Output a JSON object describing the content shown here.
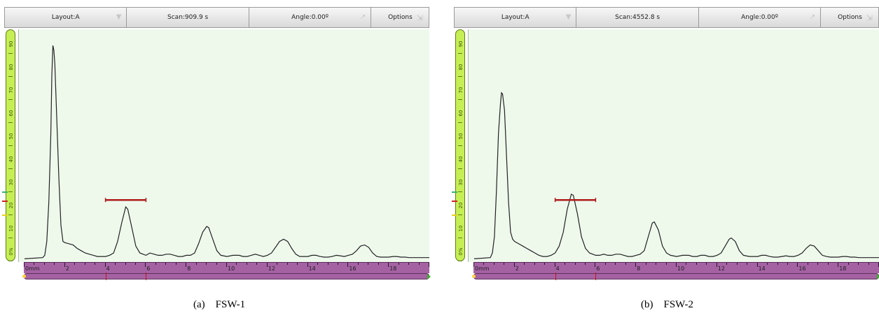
{
  "panels": [
    {
      "layout_label": "Layout:A",
      "scan_label": "Scan:909.9 s",
      "angle_label": "Angle:0.00º",
      "options_label": "Options",
      "y_ticks": [
        "0%",
        "10",
        "20",
        "30",
        "40",
        "50",
        "60",
        "70",
        "80",
        "90"
      ],
      "x_ticks": [
        "0mm",
        "2",
        "4",
        "6",
        "8",
        "10",
        "12",
        "14",
        "16",
        "18"
      ],
      "gate": {
        "start_mm": 4.0,
        "end_mm": 6.0,
        "level_pct": 26
      },
      "caption_tag": "(a)",
      "caption_name": "FSW-1",
      "signal_pts": [
        [
          0.0,
          0.5
        ],
        [
          0.9,
          1
        ],
        [
          1.0,
          2
        ],
        [
          1.1,
          8
        ],
        [
          1.2,
          25
        ],
        [
          1.3,
          55
        ],
        [
          1.35,
          80
        ],
        [
          1.4,
          93
        ],
        [
          1.45,
          91
        ],
        [
          1.5,
          85
        ],
        [
          1.6,
          60
        ],
        [
          1.7,
          35
        ],
        [
          1.8,
          15
        ],
        [
          1.9,
          8
        ],
        [
          2.0,
          7.5
        ],
        [
          2.2,
          7
        ],
        [
          2.4,
          6.5
        ],
        [
          2.6,
          5
        ],
        [
          2.8,
          4
        ],
        [
          3.0,
          3
        ],
        [
          3.2,
          2.5
        ],
        [
          3.4,
          2
        ],
        [
          3.6,
          1.5
        ],
        [
          3.8,
          1.5
        ],
        [
          4.0,
          1.5
        ],
        [
          4.2,
          2
        ],
        [
          4.4,
          3
        ],
        [
          4.6,
          8
        ],
        [
          4.8,
          16
        ],
        [
          5.0,
          23
        ],
        [
          5.1,
          22
        ],
        [
          5.3,
          14
        ],
        [
          5.5,
          6
        ],
        [
          5.7,
          3
        ],
        [
          6.0,
          2
        ],
        [
          6.2,
          3
        ],
        [
          6.4,
          2.5
        ],
        [
          6.6,
          2
        ],
        [
          6.8,
          2
        ],
        [
          7.0,
          2.5
        ],
        [
          7.2,
          2.5
        ],
        [
          7.4,
          2
        ],
        [
          7.6,
          1.5
        ],
        [
          7.8,
          1.5
        ],
        [
          8.0,
          2
        ],
        [
          8.2,
          2
        ],
        [
          8.4,
          3
        ],
        [
          8.6,
          7
        ],
        [
          8.8,
          12
        ],
        [
          9.0,
          14.5
        ],
        [
          9.1,
          14
        ],
        [
          9.3,
          9
        ],
        [
          9.5,
          4
        ],
        [
          9.7,
          2
        ],
        [
          10.0,
          1.5
        ],
        [
          10.3,
          2
        ],
        [
          10.6,
          2
        ],
        [
          10.8,
          1.5
        ],
        [
          11.0,
          1.5
        ],
        [
          11.2,
          2
        ],
        [
          11.4,
          2.5
        ],
        [
          11.6,
          2
        ],
        [
          11.8,
          1.5
        ],
        [
          12.0,
          2
        ],
        [
          12.2,
          3
        ],
        [
          12.4,
          5.5
        ],
        [
          12.6,
          8
        ],
        [
          12.8,
          9
        ],
        [
          13.0,
          8
        ],
        [
          13.2,
          5
        ],
        [
          13.4,
          2.5
        ],
        [
          13.6,
          1.5
        ],
        [
          13.8,
          1.5
        ],
        [
          14.0,
          1.5
        ],
        [
          14.2,
          2
        ],
        [
          14.4,
          2
        ],
        [
          14.6,
          1.5
        ],
        [
          14.8,
          1.2
        ],
        [
          15.0,
          1.2
        ],
        [
          15.2,
          1.5
        ],
        [
          15.4,
          2
        ],
        [
          15.6,
          1.8
        ],
        [
          15.8,
          1.5
        ],
        [
          16.0,
          2
        ],
        [
          16.2,
          2.5
        ],
        [
          16.4,
          4
        ],
        [
          16.6,
          6
        ],
        [
          16.8,
          6.5
        ],
        [
          17.0,
          5.5
        ],
        [
          17.2,
          3
        ],
        [
          17.4,
          1.5
        ],
        [
          17.6,
          1.2
        ],
        [
          17.8,
          1.2
        ],
        [
          18.0,
          1.2
        ],
        [
          18.2,
          1.5
        ],
        [
          18.4,
          1.5
        ],
        [
          18.6,
          1.2
        ],
        [
          18.8,
          1.2
        ],
        [
          19.0,
          1
        ],
        [
          19.3,
          1
        ],
        [
          19.6,
          1
        ],
        [
          20.0,
          1
        ]
      ]
    },
    {
      "layout_label": "Layout:A",
      "scan_label": "Scan:4552.8 s",
      "angle_label": "Angle:0.00º",
      "options_label": "Options",
      "y_ticks": [
        "0%",
        "10",
        "20",
        "30",
        "40",
        "50",
        "60",
        "70",
        "80",
        "90"
      ],
      "x_ticks": [
        "0mm",
        "2",
        "4",
        "6",
        "8",
        "10",
        "12",
        "14",
        "16",
        "18"
      ],
      "gate": {
        "start_mm": 4.0,
        "end_mm": 6.0,
        "level_pct": 26
      },
      "caption_tag": "(b)",
      "caption_name": "FSW-2",
      "signal_pts": [
        [
          0.0,
          0.5
        ],
        [
          0.8,
          1
        ],
        [
          0.9,
          3
        ],
        [
          1.0,
          10
        ],
        [
          1.1,
          30
        ],
        [
          1.2,
          55
        ],
        [
          1.3,
          68
        ],
        [
          1.35,
          72.5
        ],
        [
          1.4,
          72
        ],
        [
          1.5,
          65
        ],
        [
          1.6,
          45
        ],
        [
          1.7,
          25
        ],
        [
          1.8,
          12
        ],
        [
          1.9,
          9
        ],
        [
          2.0,
          8
        ],
        [
          2.2,
          7
        ],
        [
          2.4,
          6
        ],
        [
          2.6,
          5
        ],
        [
          2.8,
          4
        ],
        [
          3.0,
          3
        ],
        [
          3.2,
          2
        ],
        [
          3.4,
          1.5
        ],
        [
          3.6,
          1.5
        ],
        [
          3.8,
          2
        ],
        [
          4.0,
          3
        ],
        [
          4.2,
          6
        ],
        [
          4.4,
          12
        ],
        [
          4.6,
          22
        ],
        [
          4.8,
          28.5
        ],
        [
          4.9,
          28
        ],
        [
          5.1,
          20
        ],
        [
          5.3,
          10
        ],
        [
          5.5,
          5
        ],
        [
          5.7,
          3
        ],
        [
          6.0,
          2
        ],
        [
          6.2,
          2
        ],
        [
          6.4,
          2.5
        ],
        [
          6.6,
          2
        ],
        [
          6.8,
          2
        ],
        [
          7.0,
          2.5
        ],
        [
          7.2,
          2.5
        ],
        [
          7.4,
          2
        ],
        [
          7.6,
          1.5
        ],
        [
          7.8,
          1.5
        ],
        [
          8.0,
          2
        ],
        [
          8.2,
          2.5
        ],
        [
          8.4,
          4
        ],
        [
          8.6,
          10
        ],
        [
          8.8,
          16
        ],
        [
          8.9,
          16.5
        ],
        [
          9.1,
          13
        ],
        [
          9.3,
          6
        ],
        [
          9.5,
          3
        ],
        [
          9.7,
          2
        ],
        [
          10.0,
          1.5
        ],
        [
          10.3,
          2
        ],
        [
          10.6,
          2
        ],
        [
          10.8,
          1.5
        ],
        [
          11.0,
          1.5
        ],
        [
          11.2,
          2
        ],
        [
          11.4,
          2
        ],
        [
          11.6,
          1.5
        ],
        [
          11.8,
          1.5
        ],
        [
          12.0,
          2
        ],
        [
          12.2,
          3
        ],
        [
          12.4,
          6
        ],
        [
          12.6,
          9
        ],
        [
          12.7,
          9.5
        ],
        [
          12.9,
          8
        ],
        [
          13.1,
          4
        ],
        [
          13.3,
          2
        ],
        [
          13.6,
          1.5
        ],
        [
          13.8,
          1.5
        ],
        [
          14.0,
          1.5
        ],
        [
          14.2,
          2
        ],
        [
          14.4,
          2
        ],
        [
          14.6,
          1.5
        ],
        [
          14.8,
          1.2
        ],
        [
          15.0,
          1.2
        ],
        [
          15.2,
          1.5
        ],
        [
          15.4,
          1.8
        ],
        [
          15.6,
          1.5
        ],
        [
          15.8,
          1.5
        ],
        [
          16.0,
          2
        ],
        [
          16.2,
          3
        ],
        [
          16.4,
          5
        ],
        [
          16.6,
          6.5
        ],
        [
          16.8,
          6
        ],
        [
          17.0,
          4
        ],
        [
          17.2,
          2
        ],
        [
          17.4,
          1.5
        ],
        [
          17.6,
          1.2
        ],
        [
          17.8,
          1.2
        ],
        [
          18.0,
          1.2
        ],
        [
          18.2,
          1.5
        ],
        [
          18.4,
          1.5
        ],
        [
          18.6,
          1.2
        ],
        [
          18.8,
          1.2
        ],
        [
          19.0,
          1
        ],
        [
          19.3,
          1
        ],
        [
          19.6,
          1
        ],
        [
          20.0,
          1
        ]
      ]
    }
  ],
  "colors": {
    "signal": "#222222",
    "gate": "#b01c1c",
    "plot_bg": "#eef9ec",
    "y_axis": "#c6ef55",
    "x_ruler": "#a462a3"
  }
}
